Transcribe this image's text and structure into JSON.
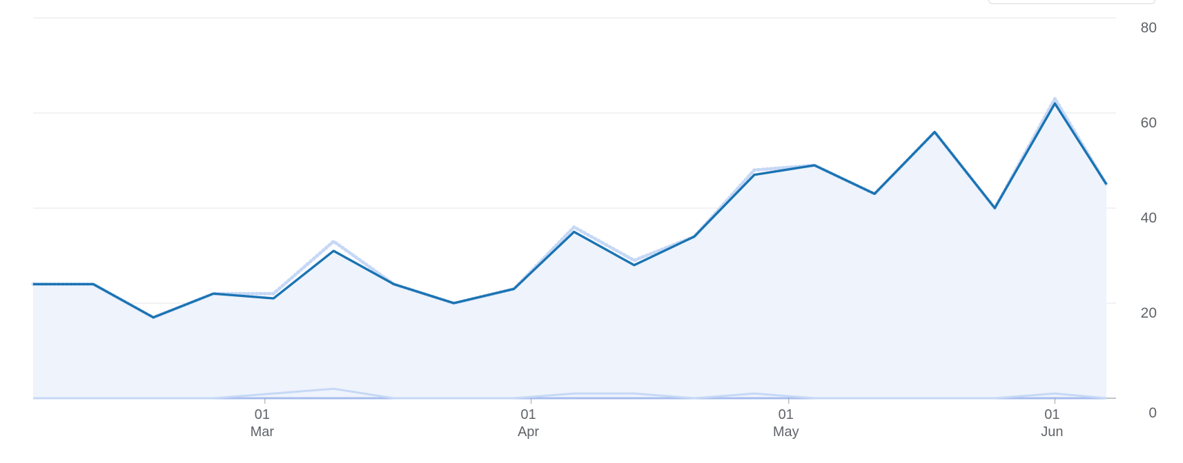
{
  "chart_data": {
    "type": "line",
    "grid": true,
    "y_axis_position": "right",
    "ylim": [
      0,
      80
    ],
    "yticks": [
      0,
      20,
      40,
      60,
      80
    ],
    "x_range": [
      "2025-02-02",
      "2025-06-07"
    ],
    "x_tick_labels": [
      {
        "date": "2025-03-01",
        "day": "01",
        "month": "Mar"
      },
      {
        "date": "2025-04-01",
        "day": "01",
        "month": "Apr"
      },
      {
        "date": "2025-05-01",
        "day": "01",
        "month": "May"
      },
      {
        "date": "2025-06-01",
        "day": "01",
        "month": "Jun"
      }
    ],
    "x": [
      "2025-02-02",
      "2025-02-09",
      "2025-02-16",
      "2025-02-23",
      "2025-03-02",
      "2025-03-09",
      "2025-03-16",
      "2025-03-23",
      "2025-03-30",
      "2025-04-06",
      "2025-04-13",
      "2025-04-20",
      "2025-04-27",
      "2025-05-04",
      "2025-05-11",
      "2025-05-18",
      "2025-05-25",
      "2025-06-01",
      "2025-06-07"
    ],
    "series": [
      {
        "role": "total",
        "style": "dotted",
        "color": "#c6d8f6",
        "values": [
          24,
          24,
          17,
          22,
          22,
          33,
          24,
          20,
          23,
          36,
          29,
          34,
          48,
          49,
          43,
          56,
          40,
          63,
          45
        ]
      },
      {
        "role": "main",
        "style": "solid",
        "color": "#1a73b2",
        "area_color": "#eef3fc",
        "values": [
          24,
          24,
          17,
          22,
          21,
          31,
          24,
          20,
          23,
          35,
          28,
          34,
          47,
          49,
          43,
          56,
          40,
          62,
          45
        ]
      },
      {
        "role": "secondary",
        "style": "solid",
        "color": "#c6d8f6",
        "values": [
          0,
          0,
          0,
          0,
          1,
          2,
          0,
          0,
          0,
          1,
          1,
          0,
          1,
          0,
          0,
          0,
          0,
          1,
          0
        ]
      },
      {
        "role": "tertiary",
        "style": "solid",
        "color": "#a8bdee",
        "values": [
          0,
          0,
          0,
          0,
          0,
          0,
          0,
          0,
          0,
          0,
          0,
          0,
          0,
          0,
          0,
          0,
          0,
          0,
          0
        ]
      }
    ],
    "colors": {
      "grid": "#e3e6ea",
      "axis": "#9aa0a6",
      "text": "#5f6368"
    }
  }
}
